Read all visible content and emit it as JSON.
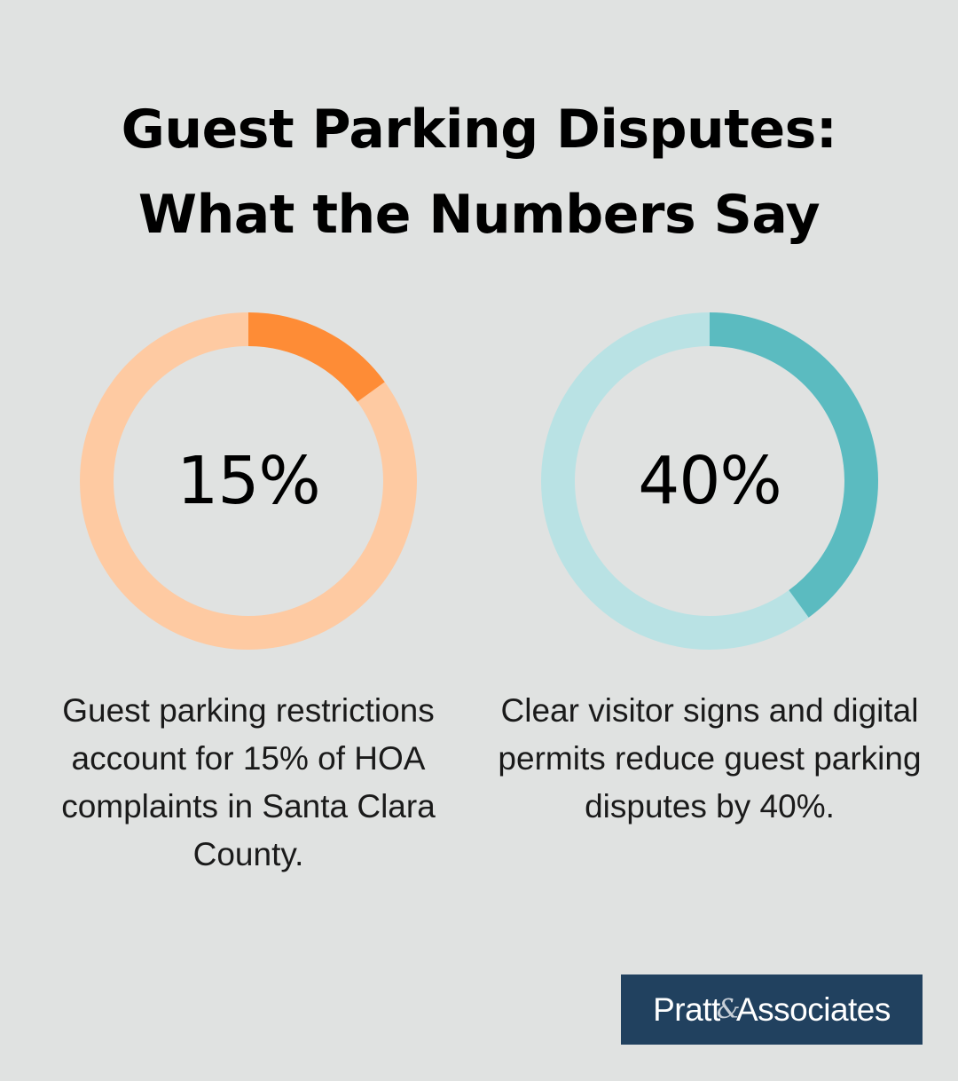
{
  "title_lines": [
    "Guest Parking Disputes:",
    "What the Numbers Say"
  ],
  "chart_data": [
    {
      "type": "pie",
      "variant": "donut",
      "value": 15,
      "total": 100,
      "label": "15%",
      "caption": "Guest parking restrictions account for 15% of HOA complaints in Santa Clara County.",
      "color_value": "#fe8c36",
      "color_track": "#fecaa2"
    },
    {
      "type": "pie",
      "variant": "donut",
      "value": 40,
      "total": 100,
      "label": "40%",
      "caption": "Clear visitor signs and digital permits reduce guest parking disputes by 40%.",
      "color_value": "#5bbbc0",
      "color_track": "#b9e2e4"
    }
  ],
  "logo": {
    "left": "Pratt",
    "amp": "&",
    "right": "Associates"
  }
}
